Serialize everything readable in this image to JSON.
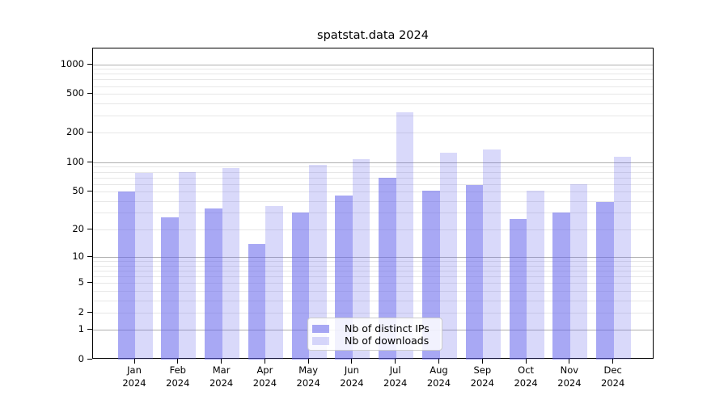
{
  "chart": {
    "title": "spatstat.data 2024",
    "colors": {
      "base": "#6161EB",
      "bar_distinct_ips": "rgba(97,97,235,0.55)",
      "bar_downloads": "rgba(97,97,235,0.24)",
      "grid_major": "#b0b0b0",
      "grid_minor": "#e7e7e7",
      "axis": "#000000",
      "legend_border": "#cccccc"
    }
  },
  "chart_data": {
    "type": "bar",
    "title": "spatstat.data 2024",
    "categories": [
      "Jan 2024",
      "Feb 2024",
      "Mar 2024",
      "Apr 2024",
      "May 2024",
      "Jun 2024",
      "Jul 2024",
      "Aug 2024",
      "Sep 2024",
      "Oct 2024",
      "Nov 2024",
      "Dec 2024"
    ],
    "month_labels": [
      "Jan",
      "Feb",
      "Mar",
      "Apr",
      "May",
      "Jun",
      "Jul",
      "Aug",
      "Sep",
      "Oct",
      "Nov",
      "Dec"
    ],
    "year": "2024",
    "series": [
      {
        "name": "Nb of distinct IPs",
        "key": "distinct-ips",
        "values": [
          50,
          27,
          33,
          14,
          30,
          45,
          69,
          51,
          58,
          26,
          30,
          39
        ]
      },
      {
        "name": "Nb of downloads",
        "key": "downloads",
        "values": [
          78,
          80,
          87,
          35,
          95,
          107,
          325,
          125,
          135,
          51,
          59,
          113
        ]
      }
    ],
    "xlabel": "",
    "ylabel": "",
    "yscale": "log1p",
    "ylim": [
      0,
      1445
    ],
    "yticks": [
      0,
      1,
      2,
      5,
      10,
      20,
      50,
      100,
      200,
      500,
      1000
    ],
    "grid_major": [
      1,
      10,
      100,
      1000
    ],
    "grid_minor": [
      2,
      3,
      4,
      5,
      6,
      7,
      8,
      9,
      20,
      30,
      40,
      50,
      60,
      70,
      80,
      90,
      200,
      300,
      400,
      500,
      600,
      700,
      800,
      900
    ],
    "grid": "on",
    "legend_position": "lower center"
  }
}
